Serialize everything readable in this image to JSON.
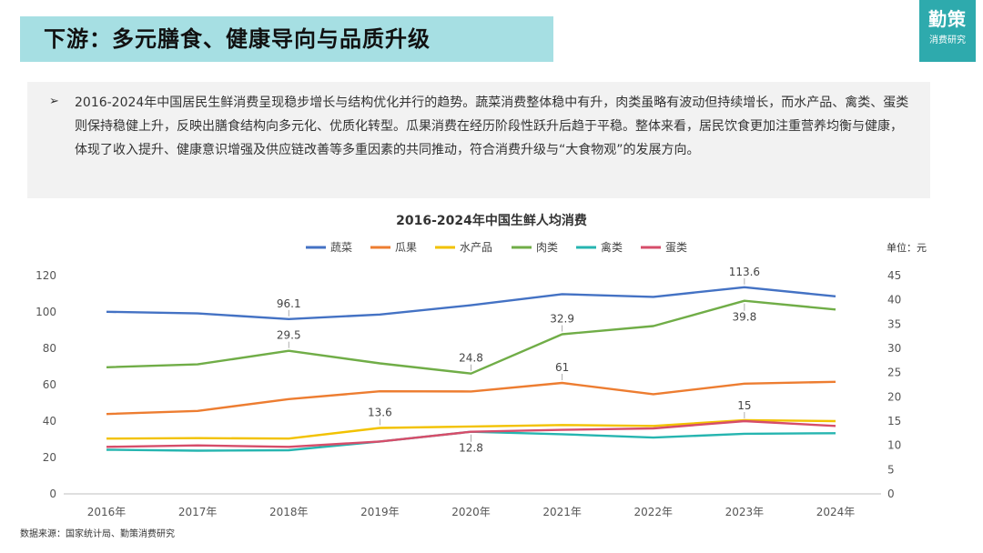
{
  "header": {
    "title": "下游：多元膳食、健康导向与品质升级",
    "brand_name": "勤策",
    "brand_sub": "消费研究"
  },
  "summary": {
    "bullet_icon": "arrow-right-icon",
    "text": "2016-2024年中国居民生鲜消费呈现稳步增长与结构优化并行的趋势。蔬菜消费整体稳中有升，肉类虽略有波动但持续增长，而水产品、禽类、蛋类则保持稳健上升，反映出膳食结构向多元化、优质化转型。瓜果消费在经历阶段性跃升后趋于平稳。整体来看，居民饮食更加注重营养均衡与健康，体现了收入提升、健康意识增强及供应链改善等多重因素的共同推动，符合消费升级与“大食物观”的发展方向。"
  },
  "source": "数据来源：国家统计局、勤策消费研究",
  "chart_data": {
    "type": "line",
    "title": "2016-2024年中国生鲜人均消费",
    "unit_label": "单位：元",
    "categories": [
      "2016年",
      "2017年",
      "2018年",
      "2019年",
      "2020年",
      "2021年",
      "2022年",
      "2023年",
      "2024年"
    ],
    "y_left": {
      "ticks": [
        0,
        20,
        40,
        60,
        80,
        100,
        120
      ],
      "ylim": [
        0,
        120
      ]
    },
    "y_right": {
      "ticks": [
        0,
        5,
        10,
        15,
        20,
        25,
        30,
        35,
        40,
        45
      ],
      "ylim": [
        0,
        45
      ]
    },
    "legend_position": "top",
    "grid": false,
    "series": [
      {
        "name": "蔬菜",
        "axis": "left",
        "color": "#4472c4",
        "values": [
          100.1,
          99.2,
          96.1,
          98.6,
          103.7,
          109.8,
          108.3,
          113.6,
          108.6
        ]
      },
      {
        "name": "瓜果",
        "axis": "left",
        "color": "#ed7d31",
        "values": [
          43.9,
          45.6,
          52.1,
          56.4,
          56.3,
          61.0,
          54.8,
          60.6,
          61.6
        ]
      },
      {
        "name": "水产品",
        "axis": "right",
        "color": "#f2c200",
        "values": [
          11.4,
          11.5,
          11.4,
          13.6,
          13.9,
          14.2,
          14.0,
          15.2,
          15.0
        ]
      },
      {
        "name": "肉类",
        "axis": "right",
        "color": "#70ad47",
        "values": [
          26.1,
          26.7,
          29.5,
          26.9,
          24.8,
          32.9,
          34.6,
          39.8,
          38.0
        ]
      },
      {
        "name": "禽类",
        "axis": "right",
        "color": "#26b5b0",
        "values": [
          9.1,
          8.9,
          9.0,
          10.8,
          12.8,
          12.3,
          11.6,
          12.4,
          12.5
        ]
      },
      {
        "name": "蛋类",
        "axis": "right",
        "color": "#d64d6a",
        "values": [
          9.7,
          10.0,
          9.7,
          10.8,
          12.8,
          13.2,
          13.5,
          15.0,
          14.0
        ]
      }
    ],
    "annotations": [
      {
        "series": 0,
        "index": 2,
        "label": "96.1",
        "pos": "above"
      },
      {
        "series": 0,
        "index": 7,
        "label": "113.6",
        "pos": "above"
      },
      {
        "series": 3,
        "index": 2,
        "label": "29.5",
        "pos": "above"
      },
      {
        "series": 3,
        "index": 4,
        "label": "24.8",
        "pos": "above"
      },
      {
        "series": 3,
        "index": 5,
        "label": "32.9",
        "pos": "above"
      },
      {
        "series": 3,
        "index": 7,
        "label": "39.8",
        "pos": "below"
      },
      {
        "series": 1,
        "index": 5,
        "label": "61",
        "pos": "above"
      },
      {
        "series": 2,
        "index": 3,
        "label": "13.6",
        "pos": "above"
      },
      {
        "series": 4,
        "index": 4,
        "label": "12.8",
        "pos": "below"
      },
      {
        "series": 5,
        "index": 7,
        "label": "15",
        "pos": "above"
      }
    ]
  }
}
